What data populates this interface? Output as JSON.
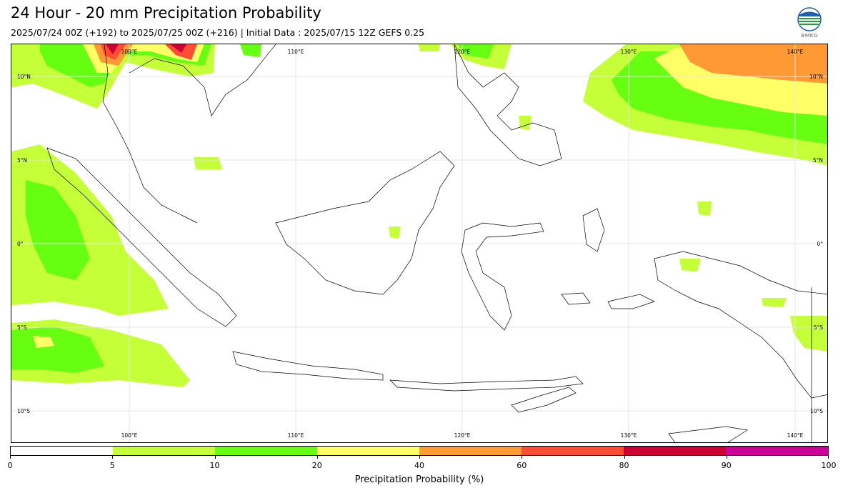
{
  "header": {
    "title": "24 Hour - 20 mm Precipitation Probability",
    "subtitle": "2025/07/24 00Z (+192) to 2025/07/25 00Z (+216) | Initial Data : 2025/07/15 12Z GEFS 0.25",
    "logo_text": "BMKG"
  },
  "map": {
    "lon_labels": [
      "100°E",
      "110°E",
      "120°E",
      "130°E",
      "140°E"
    ],
    "lat_labels": [
      "10°N",
      "5°N",
      "0°",
      "5°S",
      "10°S"
    ]
  },
  "colorbar": {
    "title": "Precipitation Probability (%)",
    "ticks": [
      "0",
      "5",
      "10",
      "20",
      "40",
      "60",
      "80",
      "90",
      "100"
    ],
    "colors": [
      "#ffffff",
      "#c5ff37",
      "#66ff11",
      "#ffff66",
      "#ff9933",
      "#ff4d33",
      "#cc0033",
      "#cc0099"
    ]
  }
}
